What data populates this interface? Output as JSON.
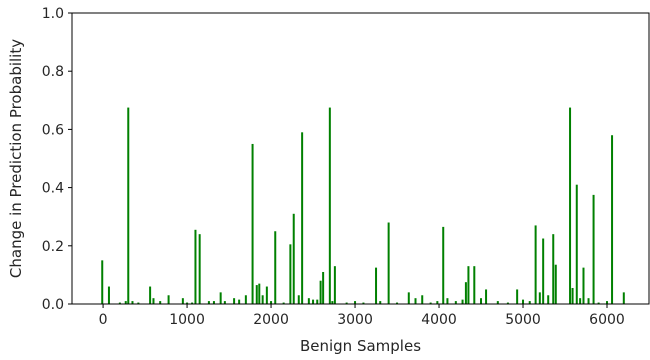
{
  "chart_data": {
    "type": "bar",
    "xlabel": "Benign Samples",
    "ylabel": "Change in Prediction Probability",
    "xlim": [
      -370,
      6500
    ],
    "ylim": [
      0.0,
      1.0
    ],
    "x_ticks": [
      0,
      1000,
      2000,
      3000,
      4000,
      5000,
      6000
    ],
    "y_ticks": [
      0.0,
      0.2,
      0.4,
      0.6,
      0.8,
      1.0
    ],
    "x_tick_labels": [
      "0",
      "1000",
      "2000",
      "3000",
      "4000",
      "5000",
      "6000"
    ],
    "y_tick_labels": [
      "0.0",
      "0.2",
      "0.4",
      "0.6",
      "0.8",
      "1.0"
    ],
    "grid": false,
    "bar_color": "#008000",
    "x": [
      -10,
      70,
      200,
      270,
      300,
      350,
      420,
      560,
      600,
      680,
      780,
      950,
      1000,
      1060,
      1100,
      1150,
      1260,
      1320,
      1400,
      1450,
      1560,
      1620,
      1700,
      1780,
      1830,
      1860,
      1900,
      1950,
      2000,
      2050,
      2150,
      2230,
      2270,
      2330,
      2370,
      2450,
      2500,
      2550,
      2590,
      2620,
      2700,
      2730,
      2760,
      2900,
      3000,
      3100,
      3250,
      3300,
      3400,
      3500,
      3640,
      3720,
      3800,
      3900,
      3980,
      4050,
      4100,
      4200,
      4280,
      4320,
      4350,
      4420,
      4500,
      4560,
      4700,
      4820,
      4930,
      5000,
      5080,
      5150,
      5200,
      5240,
      5300,
      5360,
      5390,
      5560,
      5590,
      5640,
      5680,
      5720,
      5780,
      5840,
      5900,
      6000,
      6060,
      6200
    ],
    "values": [
      0.15,
      0.06,
      0.005,
      0.01,
      0.675,
      0.01,
      0.005,
      0.06,
      0.02,
      0.01,
      0.03,
      0.02,
      0.005,
      0.005,
      0.255,
      0.24,
      0.01,
      0.01,
      0.04,
      0.01,
      0.02,
      0.015,
      0.03,
      0.55,
      0.065,
      0.07,
      0.03,
      0.06,
      0.01,
      0.25,
      0.005,
      0.205,
      0.31,
      0.03,
      0.59,
      0.02,
      0.015,
      0.015,
      0.08,
      0.11,
      0.675,
      0.01,
      0.13,
      0.005,
      0.01,
      0.005,
      0.125,
      0.01,
      0.28,
      0.005,
      0.04,
      0.02,
      0.03,
      0.005,
      0.01,
      0.265,
      0.02,
      0.01,
      0.015,
      0.075,
      0.13,
      0.13,
      0.02,
      0.05,
      0.01,
      0.005,
      0.05,
      0.015,
      0.01,
      0.27,
      0.04,
      0.225,
      0.03,
      0.24,
      0.135,
      0.675,
      0.055,
      0.41,
      0.02,
      0.125,
      0.02,
      0.375,
      0.005,
      0.01,
      0.58,
      0.04
    ]
  }
}
